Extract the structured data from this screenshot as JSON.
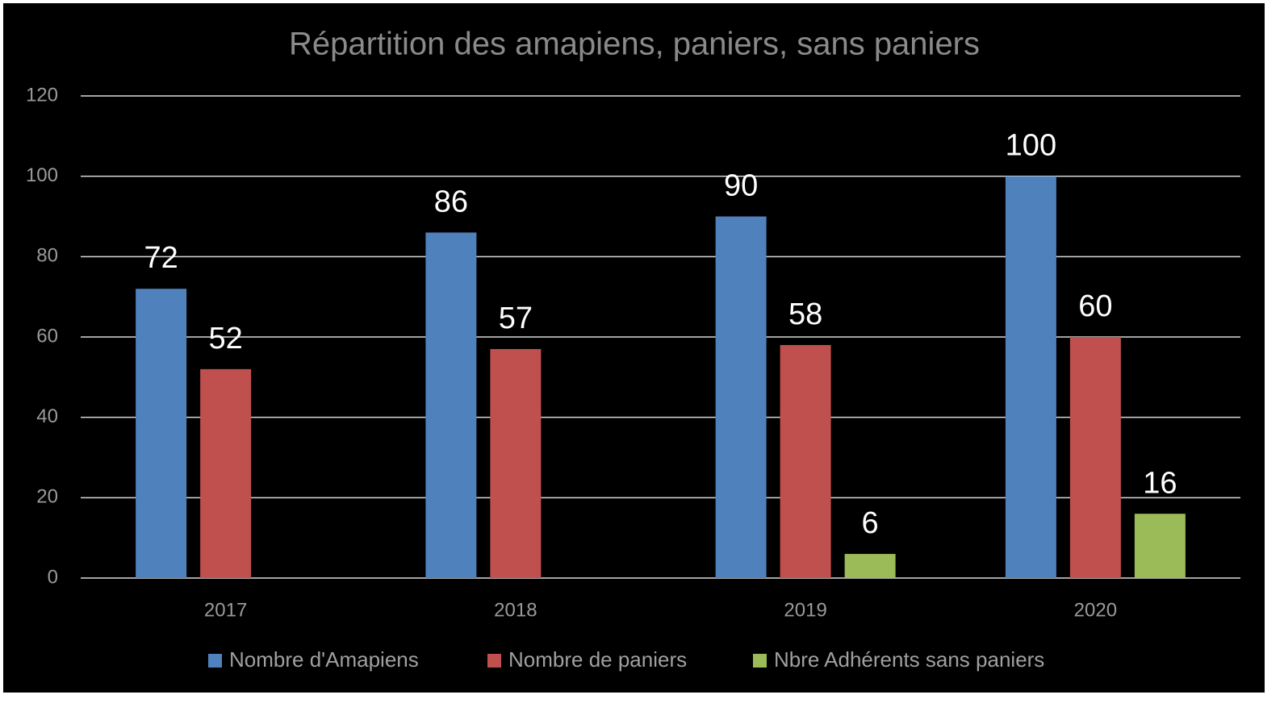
{
  "chart_data": {
    "type": "bar",
    "title": "Répartition des amapiens, paniers, sans paniers",
    "categories": [
      "2017",
      "2018",
      "2019",
      "2020"
    ],
    "series": [
      {
        "name": "Nombre d'Amapiens",
        "color": "#4f81bd",
        "values": [
          72,
          86,
          90,
          100
        ]
      },
      {
        "name": "Nombre de paniers",
        "color": "#c0504d",
        "values": [
          52,
          57,
          58,
          60
        ]
      },
      {
        "name": "Nbre Adhérents sans paniers",
        "color": "#9bbb59",
        "values": [
          null,
          null,
          6,
          16
        ]
      }
    ],
    "ylim": [
      0,
      120
    ],
    "yticks": [
      0,
      20,
      40,
      60,
      80,
      100,
      120
    ],
    "grid": true,
    "legend": "bottom"
  }
}
